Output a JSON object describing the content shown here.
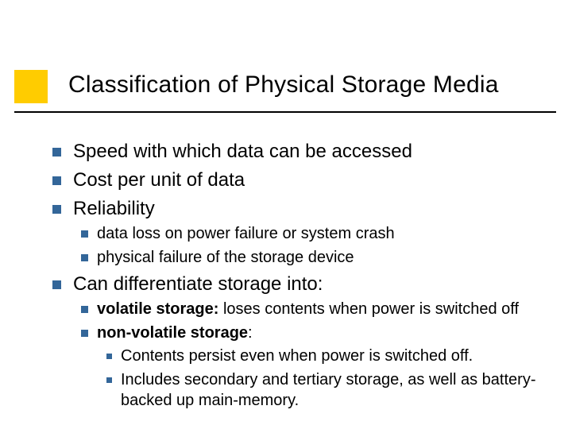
{
  "accent_square": "#ffcc00",
  "bullet_color": "#336699",
  "rule_color": "#000000",
  "background_color": "#ffffff",
  "title": "Classification of Physical Storage Media",
  "items": {
    "l1_0": "Speed with which data can be accessed",
    "l1_1": "Cost per unit of data",
    "l1_2": "Reliability",
    "l1_2_sub_0": "data loss on power failure or system crash",
    "l1_2_sub_1": "physical failure of the storage device",
    "l1_3": "Can differentiate storage into:",
    "l1_3_sub_0_bold": "volatile storage:",
    "l1_3_sub_0_rest": " loses contents when power is switched off",
    "l1_3_sub_1_bold": "non-volatile storage",
    "l1_3_sub_1_rest": ":",
    "l1_3_sub_1_l3_0": "Contents persist even when power is switched off.",
    "l1_3_sub_1_l3_1": "Includes secondary and tertiary storage, as well as battery-backed up main-memory."
  }
}
